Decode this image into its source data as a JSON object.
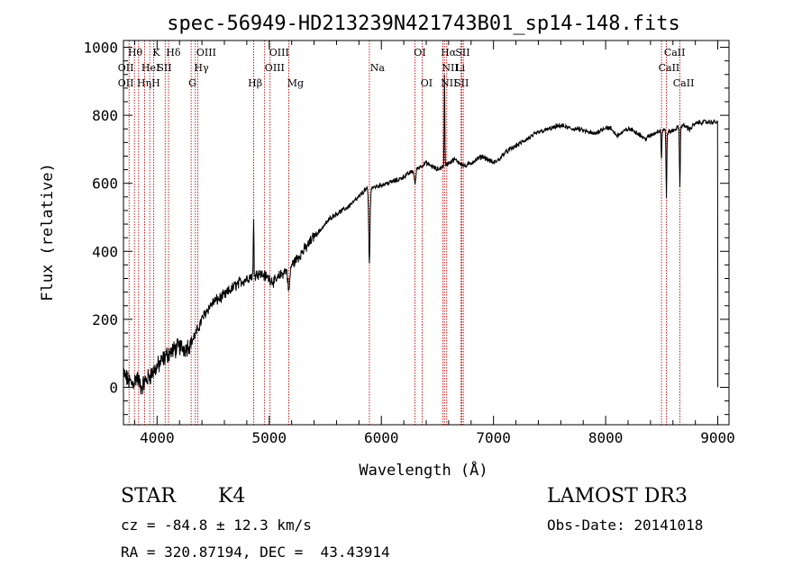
{
  "chart_data": {
    "type": "line",
    "title": "spec-56949-HD213239N421743B01_sp14-148.fits",
    "xlabel": "Wavelength (Å)",
    "ylabel": "Flux (relative)",
    "xlim": [
      3700,
      9100
    ],
    "ylim": [
      -110,
      1020
    ],
    "xticks": [
      4000,
      5000,
      6000,
      7000,
      8000,
      9000
    ],
    "yticks": [
      0,
      200,
      400,
      600,
      800,
      1000
    ],
    "grid": false,
    "series": [
      {
        "x": [
          3700,
          3740,
          3780,
          3820,
          3860,
          3900,
          3950,
          4000,
          4050,
          4100,
          4150,
          4200,
          4250,
          4300,
          4350,
          4400,
          4450,
          4500,
          4550,
          4600,
          4650,
          4700,
          4750,
          4800,
          4850,
          4900,
          4950,
          5000,
          5050,
          5100,
          5150,
          5200,
          5250,
          5300,
          5350,
          5400,
          5450,
          5500,
          5550,
          5600,
          5650,
          5700,
          5750,
          5800,
          5850,
          5900,
          5950,
          6000,
          6050,
          6100,
          6150,
          6200,
          6250,
          6300,
          6350,
          6400,
          6450,
          6500,
          6550,
          6600,
          6650,
          6700,
          6750,
          6800,
          6850,
          6900,
          6950,
          7000,
          7050,
          7100,
          7150,
          7200,
          7250,
          7300,
          7350,
          7400,
          7450,
          7500,
          7550,
          7600,
          7650,
          7700,
          7750,
          7800,
          7850,
          7900,
          7950,
          8000,
          8050,
          8100,
          8150,
          8200,
          8250,
          8300,
          8350,
          8400,
          8450,
          8500,
          8550,
          8600,
          8650,
          8700,
          8750,
          8800,
          8850,
          8900,
          8950,
          9000
        ],
        "y": [
          40,
          20,
          10,
          30,
          0,
          20,
          40,
          60,
          80,
          100,
          110,
          120,
          115,
          130,
          160,
          200,
          230,
          250,
          260,
          270,
          285,
          300,
          310,
          320,
          330,
          335,
          330,
          320,
          310,
          330,
          345,
          360,
          380,
          400,
          420,
          445,
          460,
          480,
          500,
          510,
          520,
          530,
          545,
          560,
          580,
          585,
          590,
          595,
          600,
          605,
          610,
          620,
          630,
          640,
          650,
          660,
          650,
          640,
          650,
          660,
          670,
          660,
          650,
          660,
          670,
          680,
          670,
          660,
          670,
          690,
          700,
          710,
          720,
          730,
          740,
          750,
          755,
          760,
          765,
          770,
          765,
          760,
          760,
          755,
          750,
          745,
          755,
          765,
          760,
          740,
          750,
          760,
          755,
          745,
          730,
          740,
          750,
          760,
          750,
          755,
          765,
          770,
          760,
          775,
          780,
          780,
          780,
          780
        ]
      }
    ],
    "lines": [
      {
        "x": 3750,
        "label": "OII"
      },
      {
        "x": 3798,
        "label": "Hθ"
      },
      {
        "x": 3835,
        "label": "Hη"
      },
      {
        "x": 3889,
        "label": "HeI"
      },
      {
        "x": 3934,
        "label": "K"
      },
      {
        "x": 3970,
        "label": "H"
      },
      {
        "x": 4072,
        "label": "SII"
      },
      {
        "x": 4102,
        "label": "Hδ"
      },
      {
        "x": 4304,
        "label": "G"
      },
      {
        "x": 4341,
        "label": "Hγ"
      },
      {
        "x": 4363,
        "label": "OIII"
      },
      {
        "x": 4861,
        "label": "Hβ"
      },
      {
        "x": 4959,
        "label": "OIII"
      },
      {
        "x": 5007,
        "label": "OIII"
      },
      {
        "x": 5175,
        "label": "Mg"
      },
      {
        "x": 5893,
        "label": "Na"
      },
      {
        "x": 6300,
        "label": "OI"
      },
      {
        "x": 6364,
        "label": "OI"
      },
      {
        "x": 6548,
        "label": "NII"
      },
      {
        "x": 6563,
        "label": "Hα"
      },
      {
        "x": 6583,
        "label": "NII"
      },
      {
        "x": 6708,
        "label": "Li"
      },
      {
        "x": 6717,
        "label": "SII"
      },
      {
        "x": 6731,
        "label": "SII"
      },
      {
        "x": 8498,
        "label": "CaII"
      },
      {
        "x": 8542,
        "label": "CaII"
      },
      {
        "x": 8662,
        "label": "CaII"
      }
    ],
    "line_labels": [
      {
        "text": "Hθ",
        "row": 1,
        "x": 3740
      },
      {
        "text": "OII",
        "row": 2,
        "x": 3650
      },
      {
        "text": "OII",
        "row": 3,
        "x": 3650
      },
      {
        "text": "K",
        "row": 1,
        "x": 3960
      },
      {
        "text": "HeI",
        "row": 2,
        "x": 3860
      },
      {
        "text": "Hη",
        "row": 3,
        "x": 3820
      },
      {
        "text": "Hδ",
        "row": 1,
        "x": 4080
      },
      {
        "text": "SII",
        "row": 2,
        "x": 4000
      },
      {
        "text": "H",
        "row": 3,
        "x": 3950
      },
      {
        "text": "OIII",
        "row": 1,
        "x": 4350
      },
      {
        "text": "Hγ",
        "row": 2,
        "x": 4330
      },
      {
        "text": "G",
        "row": 3,
        "x": 4280
      },
      {
        "text": "OIII",
        "row": 1,
        "x": 5000
      },
      {
        "text": "OIII",
        "row": 2,
        "x": 4960
      },
      {
        "text": "Hβ",
        "row": 3,
        "x": 4810
      },
      {
        "text": "Mg",
        "row": 3,
        "x": 5160
      },
      {
        "text": "Na",
        "row": 2,
        "x": 5900
      },
      {
        "text": "OI",
        "row": 1,
        "x": 6290
      },
      {
        "text": "OI",
        "row": 3,
        "x": 6350
      },
      {
        "text": "Hα",
        "row": 1,
        "x": 6530
      },
      {
        "text": "SII",
        "row": 1,
        "x": 6660
      },
      {
        "text": "NII",
        "row": 2,
        "x": 6540
      },
      {
        "text": "Li",
        "row": 2,
        "x": 6660
      },
      {
        "text": "NII",
        "row": 3,
        "x": 6530
      },
      {
        "text": "SII",
        "row": 3,
        "x": 6650
      },
      {
        "text": "CaII",
        "row": 1,
        "x": 8520
      },
      {
        "text": "CaII",
        "row": 2,
        "x": 8470
      },
      {
        "text": "CaII",
        "row": 3,
        "x": 8600
      }
    ]
  },
  "footer": {
    "object_class": "STAR",
    "subclass": "K4",
    "survey": "LAMOST DR3",
    "cz": "cz = -84.8 ± 12.3 km/s",
    "obs_date": "Obs-Date: 20141018",
    "coords": "RA = 320.87194, DEC =  43.43914"
  },
  "colors": {
    "line_marker": "#cc0000",
    "spectrum": "#000000"
  }
}
